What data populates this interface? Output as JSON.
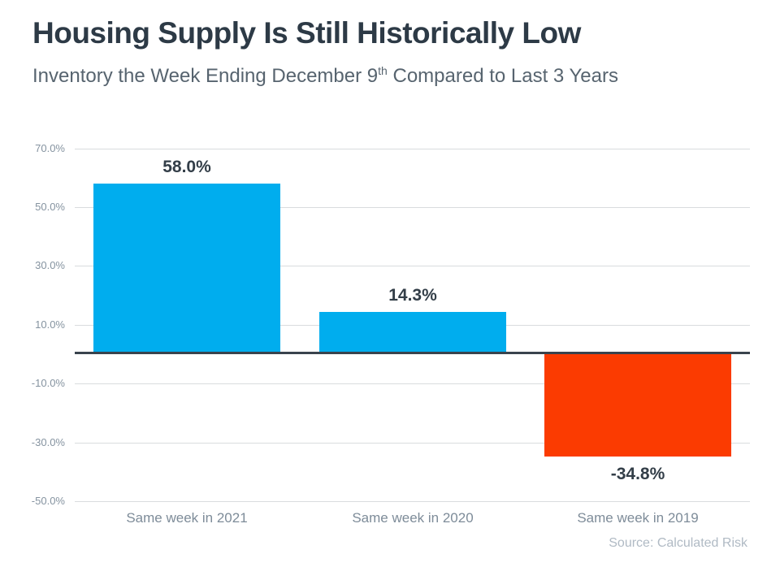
{
  "header": {
    "title": "Housing Supply Is Still Historically Low",
    "subtitle_prefix": "Inventory the Week Ending December 9",
    "subtitle_superscript": "th",
    "subtitle_suffix": " Compared to Last 3 Years"
  },
  "chart_data": {
    "type": "bar",
    "title": "Housing Supply Is Still Historically Low",
    "subtitle": "Inventory the Week Ending December 9th Compared to Last 3 Years",
    "categories": [
      "Same week in 2021",
      "Same week in 2020",
      "Same week in 2019"
    ],
    "values": [
      58.0,
      14.3,
      -34.8
    ],
    "value_labels": [
      "58.0%",
      "14.3%",
      "-34.8%"
    ],
    "bar_colors": [
      "#00adee",
      "#00adee",
      "#fb3b01"
    ],
    "y_ticks": [
      {
        "label": "70.0%",
        "value": 70
      },
      {
        "label": "50.0%",
        "value": 50
      },
      {
        "label": "30.0%",
        "value": 30
      },
      {
        "label": "10.0%",
        "value": 10
      },
      {
        "label": "-10.0%",
        "value": -10
      },
      {
        "label": "-30.0%",
        "value": -30
      },
      {
        "label": "-50.0%",
        "value": -50
      }
    ],
    "ylim": [
      -50,
      70
    ],
    "xlabel": "",
    "ylabel": "",
    "grid": true,
    "legend": false,
    "source": "Source: Calculated Risk"
  },
  "colors": {
    "positive_bar": "#00adee",
    "negative_bar": "#fb3b01",
    "title_text": "#2d3a46",
    "subtitle_text": "#57646f",
    "axis_tick_text": "#8593a0",
    "gridline": "#d9dcde",
    "zero_axis": "#39434d",
    "value_label_text": "#333e48",
    "category_text": "#7e8c99",
    "source_text": "#b0bac4",
    "background": "#ffffff"
  }
}
